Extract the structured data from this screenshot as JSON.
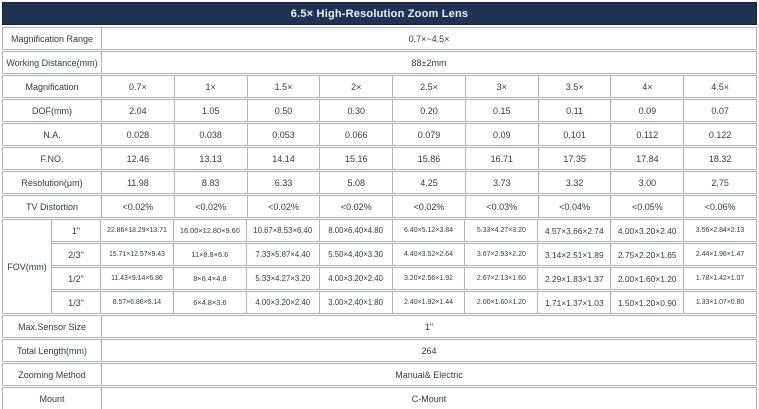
{
  "title": "6.5× High-Resolution Zoom Lens",
  "colors": {
    "header_bg": "#1e3354",
    "header_text": "#eef3fa",
    "border": "#b3b3b6",
    "body_text": "#313b48"
  },
  "table": {
    "full_rows": [
      {
        "label": "Magnification Range",
        "value": "0.7×~4.5×"
      },
      {
        "label": "Working Distance(mm)",
        "value": "88±2mm"
      }
    ],
    "grid_rows": [
      {
        "label": "Magnification",
        "values": [
          "0.7×",
          "1×",
          "1.5×",
          "2×",
          "2.5×",
          "3×",
          "3.5×",
          "4×",
          "4.5×"
        ]
      },
      {
        "label": "DOF(mm)",
        "values": [
          "2.04",
          "1.05",
          "0.50",
          "0.30",
          "0.20",
          "0.15",
          "0.11",
          "0.09",
          "0.07"
        ]
      },
      {
        "label": "N.A.",
        "values": [
          "0.028",
          "0.038",
          "0.053",
          "0.066",
          "0.079",
          "0.09",
          "0.101",
          "0.112",
          "0.122"
        ]
      },
      {
        "label": "F.NO.",
        "values": [
          "12.46",
          "13.13",
          "14.14",
          "15.16",
          "15.86",
          "16.71",
          "17.35",
          "17.84",
          "18.32"
        ]
      },
      {
        "label": "Resolution(μm)",
        "values": [
          "11.98",
          "8.83",
          "6.33",
          "5.08",
          "4.25",
          "3.73",
          "3.32",
          "3.00",
          "2.75"
        ]
      },
      {
        "label": "TV Distortion",
        "values": [
          "<0.02%",
          "<0.02%",
          "<0.02%",
          "<0.02%",
          "<0.02%",
          "<0.03%",
          "<0.04%",
          "<0.05%",
          "<0.06%"
        ]
      }
    ],
    "fov": {
      "label": "FOV(mm)",
      "rows": [
        {
          "sensor": "1\"",
          "values": [
            "22.86×18.29×13.71",
            "16.00×12.80×9.60",
            "10.67×8.53×6.40",
            "8.00×6.40×4.80",
            "6.40×5.12×3.84",
            "5.33×4.27×3.20",
            "4.57×3.66×2.74",
            "4.00×3.20×2.40",
            "3.56×2.84×2.13"
          ]
        },
        {
          "sensor": "2/3\"",
          "values": [
            "15.71×12.57×9.43",
            "11×8.8×6.6",
            "7.33×5.87×4.40",
            "5.50×4.40×3.30",
            "4.40×3.52×2.64",
            "3.67×2.93×2.20",
            "3.14×2.51×1.89",
            "2.75×2.20×1.65",
            "2.44×1.96×1.47"
          ]
        },
        {
          "sensor": "1/2\"",
          "values": [
            "11.43×9.14×6.86",
            "8×6.4×4.8",
            "5.33×4.27×3.20",
            "4.00×3.20×2.40",
            "3.20×2.56×1.92",
            "2.67×2.13×1.60",
            "2.29×1.83×1.37",
            "2.00×1.60×1.20",
            "1.78×1.42×1.07"
          ]
        },
        {
          "sensor": "1/3\"",
          "values": [
            "8.57×6.86×5.14",
            "6×4.8×3.6",
            "4.00×3.20×2.40",
            "3.00×2.40×1.80",
            "2.40×1.92×1.44",
            "2.00×1.60×1.20",
            "1.71×1.37×1.03",
            "1.50×1.20×0.90",
            "1.33×1.07×0.80"
          ]
        }
      ]
    },
    "bottom_rows": [
      {
        "label": "Max.Sensor Size",
        "value": "1\""
      },
      {
        "label": "Total Length(mm)",
        "value": "264"
      },
      {
        "label": "Zooming Method",
        "value": "Manual& Electric"
      },
      {
        "label": "Mount",
        "value": "C-Mount"
      }
    ]
  }
}
